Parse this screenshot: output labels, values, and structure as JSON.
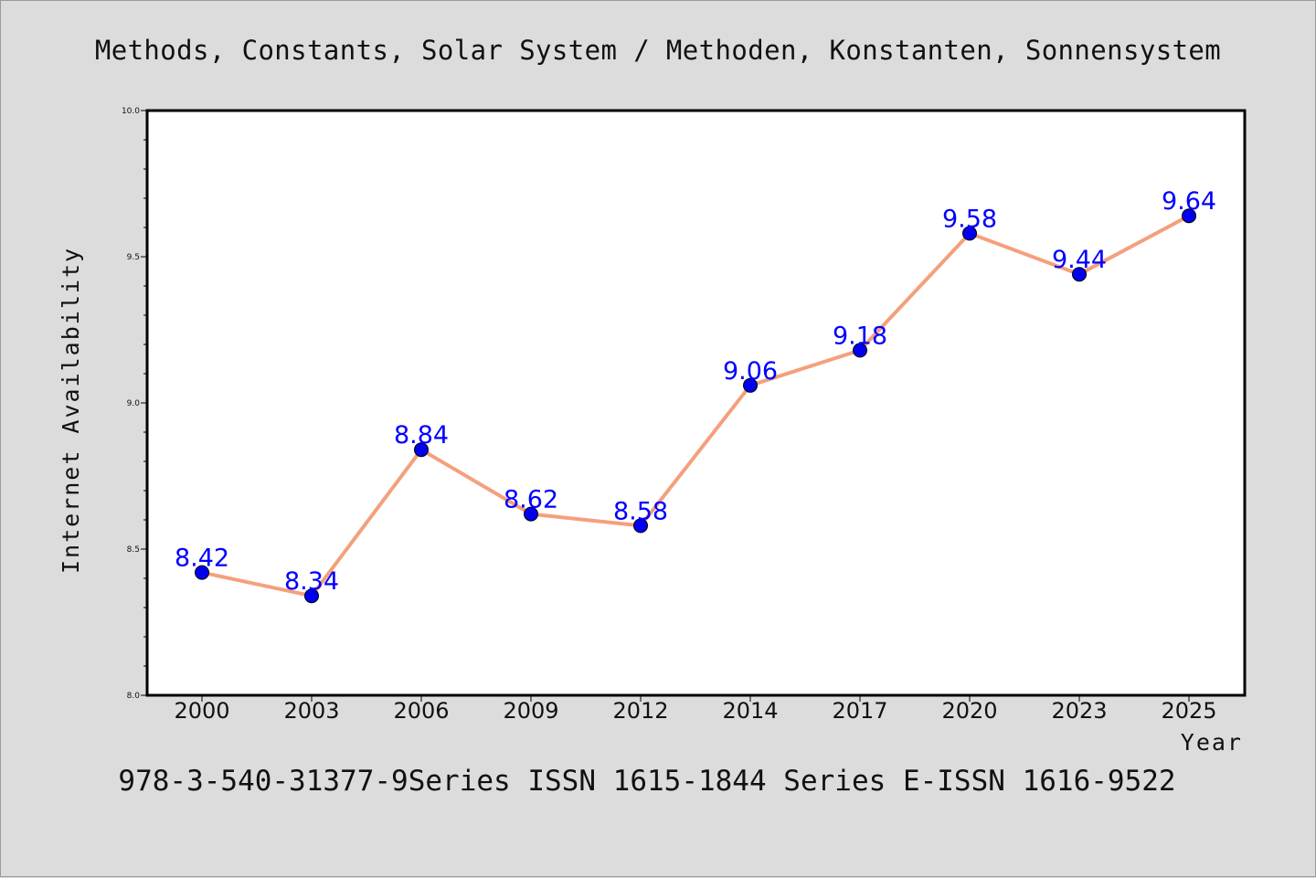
{
  "chart_data": {
    "type": "line",
    "title": "Methods, Constants, Solar System / Methoden, Konstanten, Sonnensystem",
    "footer": "978-3-540-31377-9Series ISSN 1615-1844 Series E-ISSN 1616-9522",
    "xlabel": "Year",
    "ylabel": "Internet Availability",
    "categories": [
      "2000",
      "2003",
      "2006",
      "2009",
      "2012",
      "2014",
      "2017",
      "2020",
      "2023",
      "2025"
    ],
    "series": [
      {
        "values": [
          8.42,
          8.34,
          8.84,
          8.62,
          8.58,
          9.06,
          9.18,
          9.58,
          9.44,
          9.64
        ]
      }
    ],
    "data_labels": [
      "8.42",
      "8.34",
      "8.84",
      "8.62",
      "8.58",
      "9.06",
      "9.18",
      "9.58",
      "9.44",
      "9.64"
    ],
    "ylim": [
      8.0,
      10.0
    ],
    "yticks": [
      "8.0",
      "8.5",
      "9.0",
      "9.5",
      "10.0"
    ],
    "grid": false,
    "legend": "none",
    "colors": {
      "line": "#f4a07c",
      "marker": "#0000ee",
      "label": "#0000ff",
      "background": "#dcdcdc",
      "plot_area": "#ffffff"
    }
  }
}
